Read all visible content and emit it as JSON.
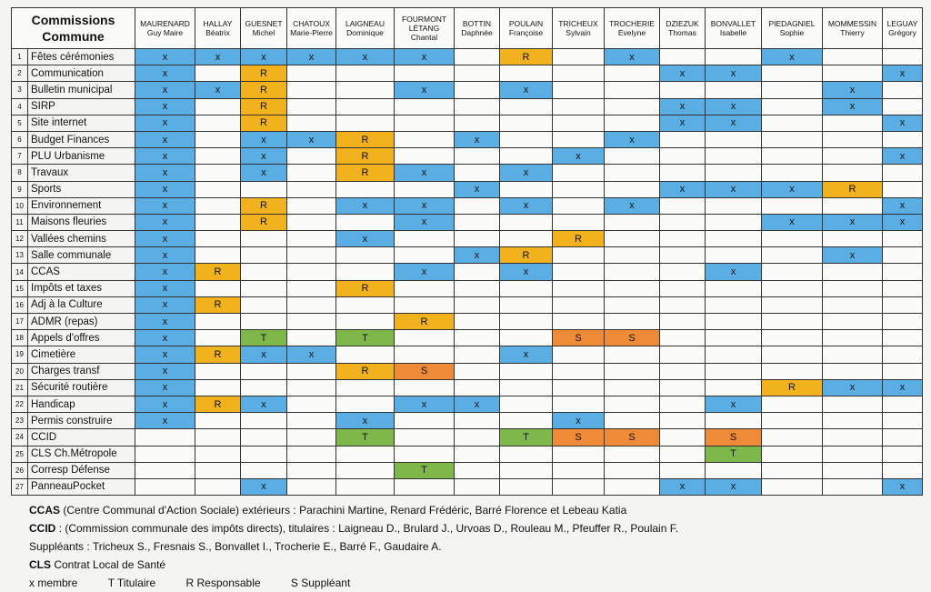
{
  "header": {
    "title_line1": "Commissions",
    "title_line2": "Commune",
    "members": [
      {
        "last": "MAURENARD",
        "first": "Guy Maire"
      },
      {
        "last": "HALLAY",
        "first": "Béatrix"
      },
      {
        "last": "GUESNET",
        "first": "Michel"
      },
      {
        "last": "CHATOUX",
        "first": "Marie-Pierre"
      },
      {
        "last": "LAIGNEAU",
        "first": "Dominique"
      },
      {
        "last": "FOURMONT LÉTANG",
        "first": "Chantal"
      },
      {
        "last": "BOTTIN",
        "first": "Daphnée"
      },
      {
        "last": "POULAIN",
        "first": "Françoise"
      },
      {
        "last": "TRICHEUX",
        "first": "Sylvain"
      },
      {
        "last": "TROCHERIE",
        "first": "Evelyne"
      },
      {
        "last": "DZIEZUK",
        "first": "Thomas"
      },
      {
        "last": "BONVALLET",
        "first": "Isabelle"
      },
      {
        "last": "PIEDAGNIEL",
        "first": "Sophie"
      },
      {
        "last": "MOMMESSIN",
        "first": "Thierry"
      },
      {
        "last": "LEGUAY",
        "first": "Grégory"
      }
    ]
  },
  "colors": {
    "x": "#5aaee4",
    "R": "#f2b21d",
    "T": "#7fb84a",
    "S": "#ef8a36"
  },
  "rows": [
    {
      "n": "1",
      "name": "Fêtes cérémonies",
      "cells": [
        "x",
        "x",
        "x",
        "x",
        "x",
        "x",
        "",
        "R",
        "",
        "x",
        "",
        "",
        "x",
        "",
        ""
      ]
    },
    {
      "n": "2",
      "name": "Communication",
      "cells": [
        "x",
        "",
        "R",
        "",
        "",
        "",
        "",
        "",
        "",
        "",
        "x",
        "x",
        "",
        "",
        "x"
      ]
    },
    {
      "n": "3",
      "name": "Bulletin municipal",
      "cells": [
        "x",
        "x",
        "R",
        "",
        "",
        "x",
        "",
        "x",
        "",
        "",
        "",
        "",
        "",
        "x",
        ""
      ]
    },
    {
      "n": "4",
      "name": "SIRP",
      "cells": [
        "x",
        "",
        "R",
        "",
        "",
        "",
        "",
        "",
        "",
        "",
        "x",
        "x",
        "",
        "x",
        ""
      ]
    },
    {
      "n": "5",
      "name": "Site internet",
      "cells": [
        "x",
        "",
        "R",
        "",
        "",
        "",
        "",
        "",
        "",
        "",
        "x",
        "x",
        "",
        "",
        "x"
      ]
    },
    {
      "n": "6",
      "name": "Budget Finances",
      "cells": [
        "x",
        "",
        "x",
        "x",
        "R",
        "",
        "x",
        "",
        "",
        "x",
        "",
        "",
        "",
        "",
        ""
      ]
    },
    {
      "n": "7",
      "name": "PLU Urbanisme",
      "cells": [
        "x",
        "",
        "x",
        "",
        "R",
        "",
        "",
        "",
        "x",
        "",
        "",
        "",
        "",
        "",
        "x"
      ]
    },
    {
      "n": "8",
      "name": "Travaux",
      "cells": [
        "x",
        "",
        "x",
        "",
        "R",
        "x",
        "",
        "x",
        "",
        "",
        "",
        "",
        "",
        "",
        ""
      ]
    },
    {
      "n": "9",
      "name": "Sports",
      "cells": [
        "x",
        "",
        "",
        "",
        "",
        "",
        "x",
        "",
        "",
        "",
        "x",
        "x",
        "x",
        "R",
        ""
      ]
    },
    {
      "n": "10",
      "name": "Environnement",
      "cells": [
        "x",
        "",
        "R",
        "",
        "x",
        "x",
        "",
        "x",
        "",
        "x",
        "",
        "",
        "",
        "",
        "x"
      ]
    },
    {
      "n": "11",
      "name": "Maisons fleuries",
      "cells": [
        "x",
        "",
        "R",
        "",
        "",
        "x",
        "",
        "",
        "",
        "",
        "",
        "",
        "x",
        "x",
        "x"
      ]
    },
    {
      "n": "12",
      "name": "Vallées chemins",
      "cells": [
        "x",
        "",
        "",
        "",
        "x",
        "",
        "",
        "",
        "R",
        "",
        "",
        "",
        "",
        "",
        ""
      ]
    },
    {
      "n": "13",
      "name": "Salle communale",
      "cells": [
        "x",
        "",
        "",
        "",
        "",
        "",
        "x",
        "R",
        "",
        "",
        "",
        "",
        "",
        "x",
        ""
      ]
    },
    {
      "n": "14",
      "name": "CCAS",
      "cells": [
        "x",
        "R",
        "",
        "",
        "",
        "x",
        "",
        "x",
        "",
        "",
        "",
        "x",
        "",
        "",
        ""
      ]
    },
    {
      "n": "15",
      "name": "Impôts et taxes",
      "cells": [
        "x",
        "",
        "",
        "",
        "R",
        "",
        "",
        "",
        "",
        "",
        "",
        "",
        "",
        "",
        ""
      ]
    },
    {
      "n": "16",
      "name": "Adj à la Culture",
      "cells": [
        "x",
        "R",
        "",
        "",
        "",
        "",
        "",
        "",
        "",
        "",
        "",
        "",
        "",
        "",
        ""
      ]
    },
    {
      "n": "17",
      "name": "ADMR (repas)",
      "cells": [
        "x",
        "",
        "",
        "",
        "",
        "R",
        "",
        "",
        "",
        "",
        "",
        "",
        "",
        "",
        ""
      ]
    },
    {
      "n": "18",
      "name": "Appels d'offres",
      "cells": [
        "x",
        "",
        "T",
        "",
        "T",
        "",
        "",
        "",
        "S",
        "S",
        "",
        "",
        "",
        "",
        ""
      ]
    },
    {
      "n": "19",
      "name": "Cimetière",
      "cells": [
        "x",
        "R",
        "x",
        "x",
        "",
        "",
        "",
        "x",
        "",
        "",
        "",
        "",
        "",
        "",
        ""
      ]
    },
    {
      "n": "20",
      "name": "Charges transf",
      "cells": [
        "x",
        "",
        "",
        "",
        "R",
        "S",
        "",
        "",
        "",
        "",
        "",
        "",
        "",
        "",
        ""
      ]
    },
    {
      "n": "21",
      "name": "Sécurité routière",
      "cells": [
        "x",
        "",
        "",
        "",
        "",
        "",
        "",
        "",
        "",
        "",
        "",
        "",
        "R",
        "x",
        "x"
      ]
    },
    {
      "n": "22",
      "name": "Handicap",
      "cells": [
        "x",
        "R",
        "x",
        "",
        "",
        "x",
        "x",
        "",
        "",
        "",
        "",
        "x",
        "",
        "",
        ""
      ]
    },
    {
      "n": "23",
      "name": "Permis construire",
      "cells": [
        "x",
        "",
        "",
        "",
        "x",
        "",
        "",
        "",
        "x",
        "",
        "",
        "",
        "",
        "",
        ""
      ]
    },
    {
      "n": "24",
      "name": "CCID",
      "cells": [
        "",
        "",
        "",
        "",
        "T",
        "",
        "",
        "T",
        "S",
        "S",
        "",
        "S",
        "",
        "",
        ""
      ]
    },
    {
      "n": "25",
      "name": "CLS Ch.Métropole",
      "cells": [
        "",
        "",
        "",
        "",
        "",
        "",
        "",
        "",
        "",
        "",
        "",
        "T",
        "",
        "",
        ""
      ]
    },
    {
      "n": "26",
      "name": "Corresp  Défense",
      "cells": [
        "",
        "",
        "",
        "",
        "",
        "T",
        "",
        "",
        "",
        "",
        "",
        "",
        "",
        "",
        ""
      ]
    },
    {
      "n": "27",
      "name": "PanneauPocket",
      "cells": [
        "",
        "",
        "x",
        "",
        "",
        "",
        "",
        "",
        "",
        "",
        "x",
        "x",
        "",
        "",
        "x"
      ]
    }
  ],
  "notes": {
    "ccas_label": "CCAS",
    "ccas_text": " (Centre Communal d'Action Sociale) extérieurs : Parachini Martine, Renard Frédéric, Barré Florence et Lebeau Katia",
    "ccid_label": "CCID",
    "ccid_text": " : (Commission communale des impôts directs), titulaires : Laigneau D., Brulard J., Urvoas D., Rouleau M., Pfeuffer R., Poulain F.",
    "suppleants": "Suppléants : Tricheux S., Fresnais S., Bonvallet I., Trocherie E., Barré F., Gaudaire A.",
    "cls_label": "CLS",
    "cls_text": " Contrat Local de Santé",
    "legend": [
      "x membre",
      "T Titulaire",
      "R Responsable",
      "S Suppléant"
    ]
  }
}
